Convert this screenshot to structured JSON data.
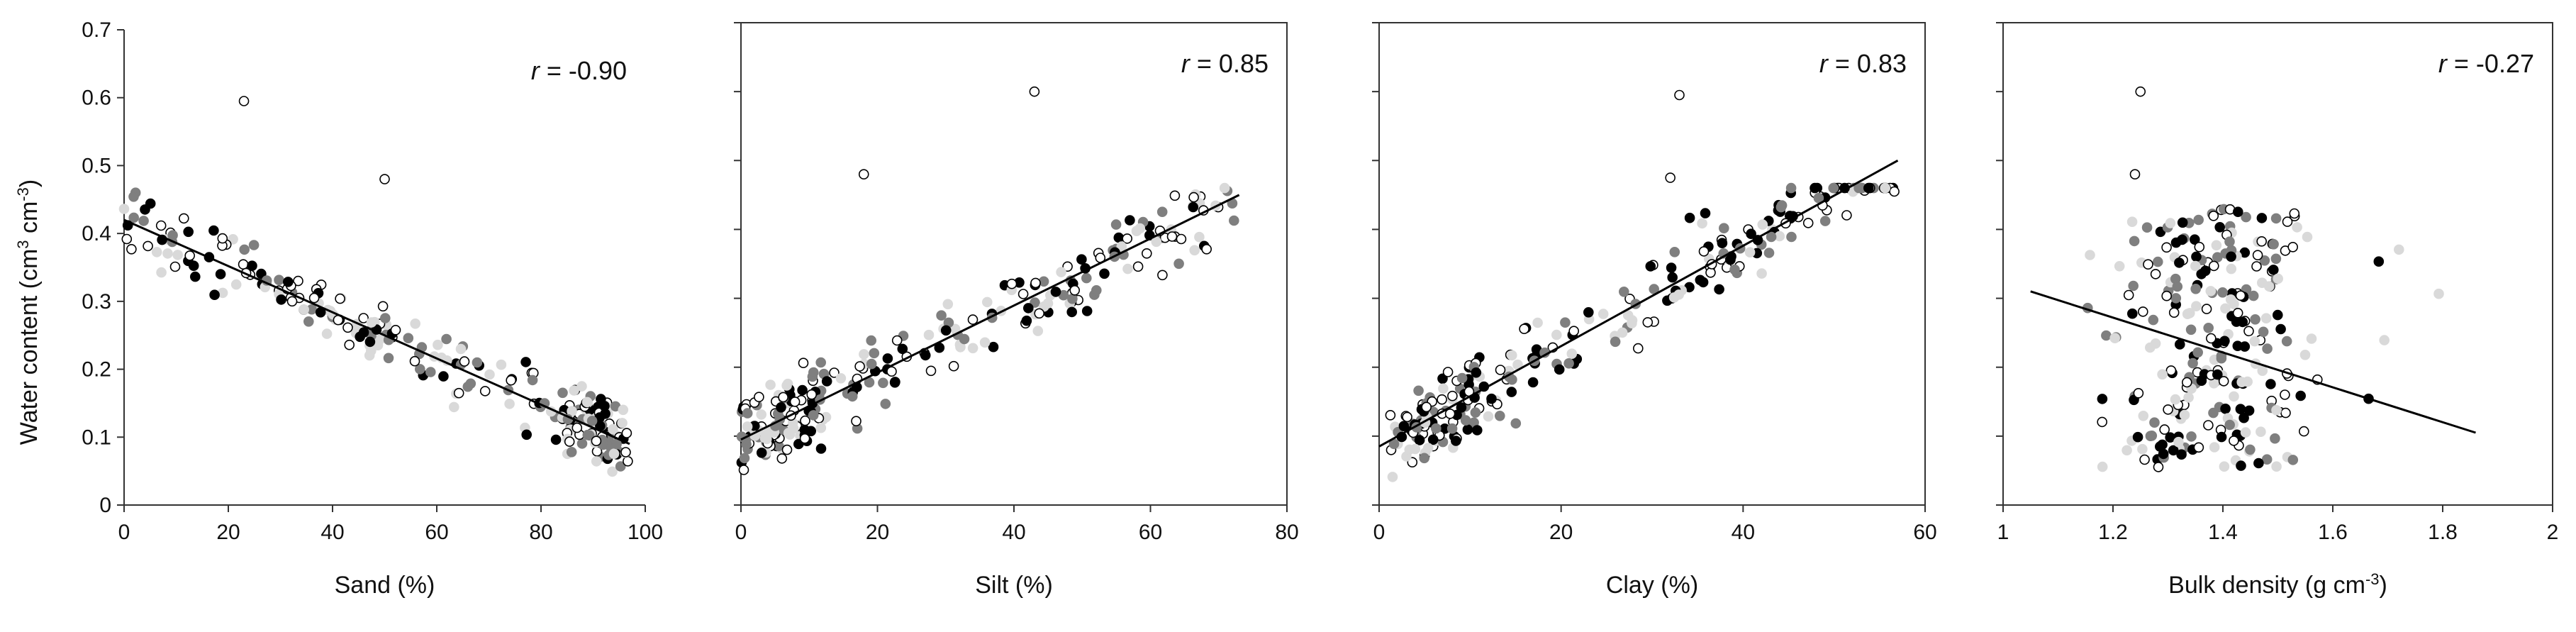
{
  "y_axis_title": {
    "main": "Water content (cm",
    "sup1": "3",
    "mid": " cm",
    "sup2": "-3",
    "end": ")"
  },
  "chart_data": [
    {
      "type": "scatter",
      "id": "sand",
      "xlabel": "Sand (%)",
      "xlim": [
        0,
        100
      ],
      "xticks": [
        0,
        20,
        40,
        60,
        80,
        100
      ],
      "ylim": [
        0,
        0.7
      ],
      "yticks": [
        0,
        0.1,
        0.2,
        0.3,
        0.4,
        0.5,
        0.6,
        0.7
      ],
      "ytick_labels": [
        "0",
        "0.1",
        "0.2",
        "0.3",
        "0.4",
        "0.5",
        "0.6",
        "0.7"
      ],
      "r_label": "-0.90",
      "trend": [
        [
          0,
          0.42
        ],
        [
          97,
          0.09
        ]
      ],
      "outlier": [
        23,
        0.595
      ],
      "outlier2": [
        50,
        0.48
      ],
      "x_range": [
        0,
        97
      ],
      "noise": 0.04,
      "seed": 11
    },
    {
      "type": "scatter",
      "id": "silt",
      "xlabel": "Silt (%)",
      "xlim": [
        0,
        80
      ],
      "xticks": [
        0,
        20,
        40,
        60,
        80
      ],
      "ylim": [
        0,
        0.7
      ],
      "yticks": [
        0,
        0.1,
        0.2,
        0.3,
        0.4,
        0.5,
        0.6,
        0.7
      ],
      "ytick_labels": [
        "",
        "",
        "",
        "",
        "",
        "",
        "",
        ""
      ],
      "r_label": "0.85",
      "trend": [
        [
          0,
          0.095
        ],
        [
          73,
          0.45
        ]
      ],
      "outlier": [
        43,
        0.6
      ],
      "outlier2": [
        18,
        0.48
      ],
      "x_range": [
        0,
        73
      ],
      "noise": 0.045,
      "seed": 23
    },
    {
      "type": "scatter",
      "id": "clay",
      "xlabel": "Clay (%)",
      "xlim": [
        0,
        60
      ],
      "xticks": [
        0,
        20,
        40,
        60
      ],
      "ylim": [
        0,
        0.7
      ],
      "yticks": [
        0,
        0.1,
        0.2,
        0.3,
        0.4,
        0.5,
        0.6,
        0.7
      ],
      "ytick_labels": [
        "",
        "",
        "",
        "",
        "",
        "",
        "",
        ""
      ],
      "r_label": "0.83",
      "trend": [
        [
          0,
          0.085
        ],
        [
          57,
          0.5
        ]
      ],
      "outlier": [
        33,
        0.595
      ],
      "outlier2": [
        32,
        0.475
      ],
      "x_range": [
        1,
        57
      ],
      "noise": 0.05,
      "seed": 37
    },
    {
      "type": "scatter",
      "id": "bulk",
      "xlabel": "Bulk density (g cm",
      "xlabel_sup": "-3",
      "xlabel_end": ")",
      "xlim": [
        1,
        2
      ],
      "xticks": [
        1,
        1.2,
        1.4,
        1.6,
        1.8,
        2
      ],
      "ytick_labels": [
        "",
        "",
        "",
        "",
        "",
        "",
        "",
        ""
      ],
      "ylim": [
        0,
        0.7
      ],
      "yticks": [
        0,
        0.1,
        0.2,
        0.3,
        0.4,
        0.5,
        0.6,
        0.7
      ],
      "r_label": "-0.27",
      "trend": [
        [
          1.05,
          0.31
        ],
        [
          1.86,
          0.105
        ]
      ],
      "outlier": [
        1.25,
        0.6
      ],
      "outlier2": [
        1.24,
        0.48
      ],
      "x_range": [
        1.1,
        1.86
      ],
      "noise": 0.09,
      "seed": 53
    }
  ],
  "point_colors": {
    "black": "#000000",
    "dark_gray": "#7f7f7f",
    "light_gray": "#d9d9d9",
    "open": "#ffffff"
  }
}
